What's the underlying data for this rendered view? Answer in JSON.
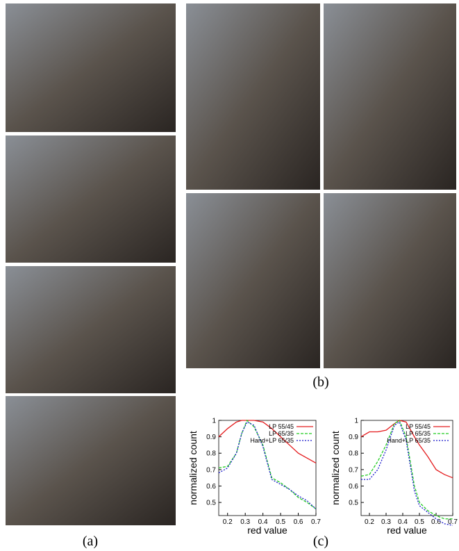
{
  "captions": [
    "(a)",
    "(b)",
    "(c)"
  ],
  "chart_data": [
    {
      "type": "line",
      "x_label": "red value",
      "y_label": "normalized count",
      "x": [
        0.15,
        0.2,
        0.25,
        0.28,
        0.31,
        0.35,
        0.4,
        0.45,
        0.5,
        0.55,
        0.6,
        0.65,
        0.7
      ],
      "series": [
        {
          "name": "LP 55/45",
          "color": "#e41a1c",
          "dash": "",
          "values": [
            0.9,
            0.95,
            0.99,
            1.0,
            1.0,
            1.0,
            0.99,
            0.95,
            0.9,
            0.85,
            0.8,
            0.77,
            0.74
          ]
        },
        {
          "name": "LP 65/35",
          "color": "#22cc22",
          "dash": "4 2",
          "values": [
            0.71,
            0.72,
            0.8,
            0.92,
            1.0,
            0.96,
            0.85,
            0.65,
            0.62,
            0.58,
            0.53,
            0.5,
            0.46
          ]
        },
        {
          "name": "Hand+LP 65/35",
          "color": "#1a1acc",
          "dash": "2 2",
          "values": [
            0.68,
            0.71,
            0.8,
            0.92,
            0.99,
            0.97,
            0.84,
            0.64,
            0.61,
            0.58,
            0.54,
            0.51,
            0.46
          ]
        }
      ],
      "xlim": [
        0.15,
        0.7
      ],
      "ylim": [
        0.42,
        1
      ],
      "xticks": [
        0.2,
        0.3,
        0.4,
        0.5,
        0.6,
        0.7
      ],
      "yticks": [
        0.5,
        0.6,
        0.7,
        0.8,
        0.9,
        1
      ]
    },
    {
      "type": "line",
      "x_label": "red value",
      "y_label": "normalized count",
      "x": [
        0.15,
        0.2,
        0.25,
        0.3,
        0.35,
        0.38,
        0.42,
        0.47,
        0.5,
        0.55,
        0.6,
        0.65,
        0.7
      ],
      "series": [
        {
          "name": "LP 55/45",
          "color": "#e41a1c",
          "dash": "",
          "values": [
            0.9,
            0.93,
            0.93,
            0.94,
            0.98,
            1.0,
            0.99,
            0.9,
            0.85,
            0.78,
            0.7,
            0.67,
            0.65
          ]
        },
        {
          "name": "LP 65/35",
          "color": "#22cc22",
          "dash": "4 2",
          "values": [
            0.66,
            0.67,
            0.75,
            0.85,
            0.98,
            1.0,
            0.9,
            0.6,
            0.5,
            0.45,
            0.42,
            0.4,
            0.4
          ]
        },
        {
          "name": "Hand+LP 65/35",
          "color": "#1a1acc",
          "dash": "2 2",
          "values": [
            0.64,
            0.64,
            0.7,
            0.82,
            0.97,
            0.99,
            0.88,
            0.57,
            0.48,
            0.44,
            0.4,
            0.37,
            0.36
          ]
        }
      ],
      "xlim": [
        0.15,
        0.7
      ],
      "ylim": [
        0.42,
        1
      ],
      "xticks": [
        0.2,
        0.3,
        0.4,
        0.5,
        0.6,
        0.7
      ],
      "yticks": [
        0.5,
        0.6,
        0.7,
        0.8,
        0.9,
        1
      ]
    }
  ]
}
